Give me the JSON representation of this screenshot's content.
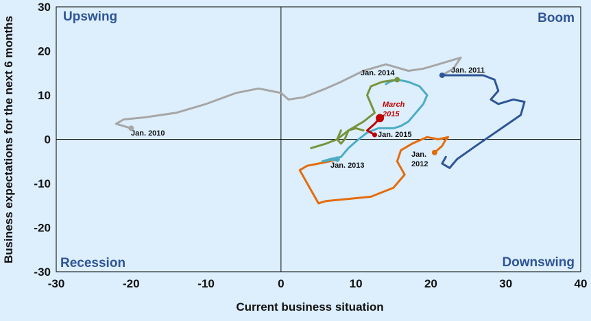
{
  "chart_data": {
    "type": "line",
    "xlabel": "Current business situation",
    "ylabel": "Business expectations for the next 6 months",
    "xlim": [
      -30,
      40
    ],
    "ylim": [
      -30,
      30
    ],
    "xticks": [
      "-30",
      "-20",
      "-10",
      "0",
      "10",
      "20",
      "30",
      "40"
    ],
    "yticks": [
      "30",
      "20",
      "10",
      "0",
      "-10",
      "-20",
      "-30"
    ],
    "grid": false,
    "quadrants": {
      "top_left": "Upswing",
      "top_right": "Boom",
      "bottom_left": "Recession",
      "bottom_right": "Downswing"
    },
    "colors": {
      "series_2010": "#a6a6a6",
      "series_2011": "#2e5597",
      "series_2012": "#e46c0a",
      "series_2013": "#4bacc6",
      "series_2014": "#77933c",
      "series_2015": "#c00000",
      "quadrant_text": "#2e5597",
      "background": "#ddeefc"
    },
    "series": [
      {
        "start_label": "Jan. 2010",
        "color": "#a6a6a6",
        "x": [
          -20,
          -22,
          -21,
          -18,
          -14,
          -10,
          -6,
          -3,
          0,
          1,
          3,
          6,
          8,
          11,
          14,
          17,
          19,
          21,
          24,
          23,
          21.5
        ],
        "y": [
          2.5,
          3.5,
          4.5,
          5,
          6,
          8,
          10.5,
          11.5,
          10.5,
          9,
          9.5,
          11.5,
          13,
          15.5,
          17,
          15.5,
          16,
          17,
          18.5,
          16,
          14.5
        ]
      },
      {
        "start_label": "Jan. 2011",
        "color": "#2e5597",
        "x": [
          21.5,
          24,
          27,
          28.5,
          29,
          28,
          29,
          31,
          32.5,
          32,
          29,
          26,
          23.5,
          22.5,
          22,
          21.5,
          22
        ],
        "y": [
          14.5,
          14.5,
          14.5,
          13.5,
          11,
          9,
          8,
          9,
          8.5,
          5.5,
          2,
          -1.5,
          -4.5,
          -6.5,
          -6,
          -5.5,
          -4
        ]
      },
      {
        "start_label": "Jan. 2012",
        "color": "#e46c0a",
        "x": [
          20.5,
          21.5,
          22,
          22.3,
          21,
          19.5,
          17.5,
          16,
          15.5,
          16.5,
          15,
          12,
          9,
          6,
          5,
          3.5,
          2.5,
          3.5,
          5,
          6.5,
          7.5
        ],
        "y": [
          -3,
          -1.5,
          0,
          0.5,
          0,
          0.5,
          -1,
          -2.5,
          -5,
          -8,
          -11,
          -13,
          -13.5,
          -14,
          -14.5,
          -10,
          -7,
          -6,
          -5.5,
          -5,
          -4.5
        ]
      },
      {
        "start_label": "Jan. 2013",
        "color": "#4bacc6",
        "x": [
          7.5,
          5.5,
          6.5,
          8,
          9,
          10,
          11.5,
          13,
          14,
          15,
          16,
          17,
          18,
          19,
          19.5,
          18.5,
          17,
          15.5,
          14.5,
          14
        ],
        "y": [
          -4.5,
          -5,
          -4.5,
          -4,
          -2,
          -0.5,
          1.5,
          2.5,
          2.5,
          2.5,
          3,
          4,
          6,
          8,
          10,
          12,
          13,
          13.5,
          13,
          12.5
        ]
      },
      {
        "start_label": "Jan. 2014",
        "color": "#77933c",
        "x": [
          15.5,
          13.5,
          12,
          11.5,
          12,
          12.5,
          11,
          9,
          7.5,
          6,
          4,
          6,
          7.5,
          8,
          7.5,
          8,
          8.5,
          9,
          10,
          11
        ],
        "y": [
          13.5,
          13,
          12,
          10,
          8,
          6,
          4,
          2,
          0,
          -1,
          -2,
          -1,
          0,
          2,
          0,
          -1,
          0,
          2,
          2.5,
          2
        ]
      },
      {
        "start_label": "Jan. 2015",
        "color": "#c00000",
        "x": [
          12.5,
          11.5,
          12.5,
          13.2
        ],
        "y": [
          1,
          2,
          3.5,
          4.8
        ]
      }
    ],
    "annotations": {
      "jan2010": "Jan. 2010",
      "jan2011": "Jan. 2011",
      "jan2012_line1": "Jan.",
      "jan2012_line2": "2012",
      "jan2013": "Jan. 2013",
      "jan2014": "Jan. 2014",
      "jan2015": "Jan. 2015",
      "march2015_line1": "March",
      "march2015_line2": "2015"
    }
  }
}
